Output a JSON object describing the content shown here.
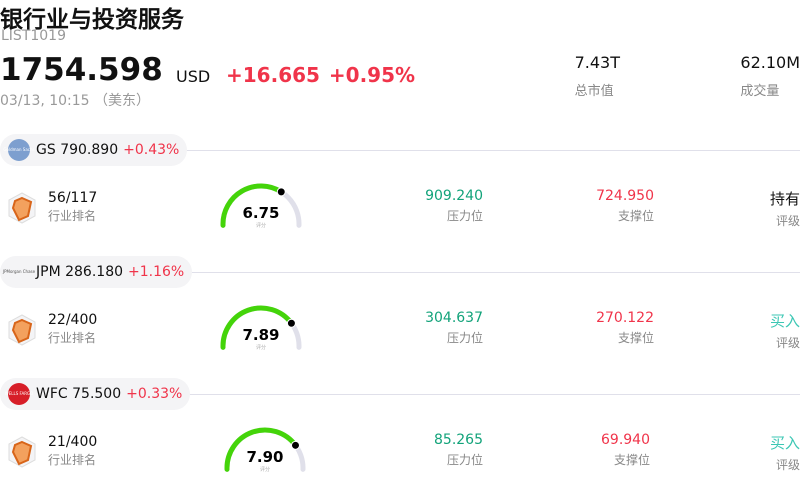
{
  "header": {
    "title": "银行业与投资服务",
    "code": "LIST1019",
    "price": "1754.598",
    "currency": "USD",
    "change": "+16.665",
    "change_pct": "+0.95%",
    "time": "03/13, 10:15 （美东）",
    "stats": [
      {
        "value": "7.43T",
        "label": "总市值"
      },
      {
        "value": "62.10M",
        "label": "成交量"
      }
    ]
  },
  "colors": {
    "up": "#f0344a",
    "support": "#f0344a",
    "resistance": "#12a37a",
    "gauge_fill": "#44d40a",
    "gauge_track": "#e0e0ea",
    "rating_buy": "#3cc7b4"
  },
  "stocks": [
    {
      "ticker": "GS",
      "price": "790.890",
      "change_pct": "+0.43%",
      "logo": "Goldman Sachs",
      "logo_color": "#7d9fcf",
      "rank": "56/117",
      "rank_label": "行业排名",
      "score": "6.75",
      "score_value": 6.75,
      "score_label": "评分",
      "resistance": "909.240",
      "resistance_label": "压力位",
      "support": "724.950",
      "support_label": "支撑位",
      "rating": "持有",
      "rating_label": "评级"
    },
    {
      "ticker": "JPM",
      "price": "286.180",
      "change_pct": "+1.16%",
      "logo": "JPMorgan Chase",
      "logo_color": "#f4f4f6",
      "rank": "22/400",
      "rank_label": "行业排名",
      "score": "7.89",
      "score_value": 7.89,
      "score_label": "评分",
      "resistance": "304.637",
      "resistance_label": "压力位",
      "support": "270.122",
      "support_label": "支撑位",
      "rating": "买入",
      "rating_label": "评级"
    },
    {
      "ticker": "WFC",
      "price": "75.500",
      "change_pct": "+0.33%",
      "logo": "WELLS FARGO",
      "logo_color": "#d71e28",
      "rank": "21/400",
      "rank_label": "行业排名",
      "score": "7.90",
      "score_value": 7.9,
      "score_label": "评分",
      "resistance": "85.265",
      "resistance_label": "压力位",
      "support": "69.940",
      "support_label": "支撑位",
      "rating": "买入",
      "rating_label": "评级"
    }
  ]
}
